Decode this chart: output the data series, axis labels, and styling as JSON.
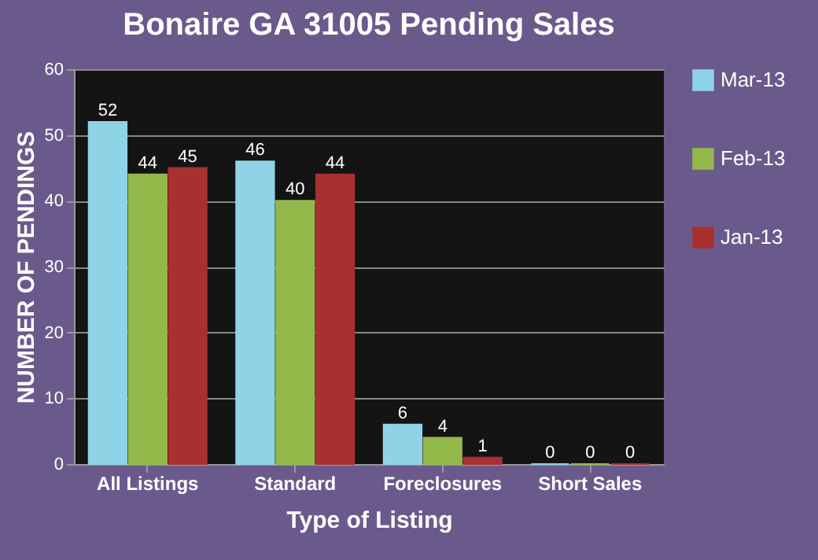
{
  "chart_data": {
    "type": "bar",
    "title": "Bonaire GA 31005 Pending Sales",
    "xlabel": "Type of Listing",
    "ylabel": "NUMBER OF PENDINGS",
    "categories": [
      "All Listings",
      "Standard",
      "Foreclosures",
      "Short Sales"
    ],
    "series": [
      {
        "name": "Mar-13",
        "color": "#8fd3e6",
        "values": [
          52,
          46,
          6,
          0
        ]
      },
      {
        "name": "Feb-13",
        "color": "#93b84a",
        "values": [
          44,
          40,
          4,
          0
        ]
      },
      {
        "name": "Jan-13",
        "color": "#a8302f",
        "values": [
          45,
          44,
          1,
          0
        ]
      }
    ],
    "ylim": [
      0,
      60
    ],
    "yticks": [
      0,
      10,
      20,
      30,
      40,
      50,
      60
    ],
    "grid": "y",
    "legend": "right",
    "data_labels": true
  }
}
